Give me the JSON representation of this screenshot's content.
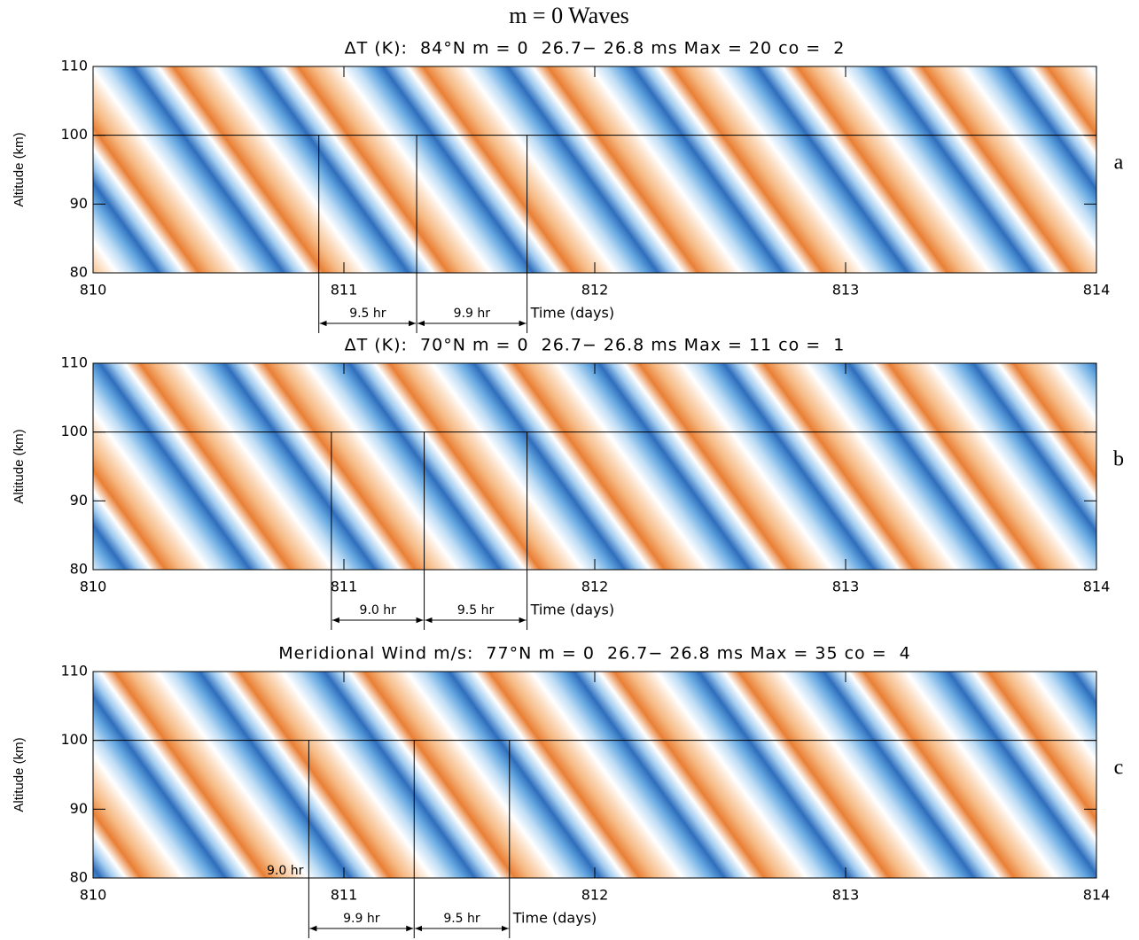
{
  "title": "m = 0 Waves",
  "chart_data": [
    {
      "type": "contour",
      "title": "ΔT (K):  84°N m = 0  26.7− 26.8 ms Max = 20 co =  2",
      "panel_label": "a",
      "xlabel": "Time (days)",
      "ylabel": "Altitude (km)",
      "xlim": [
        810,
        814
      ],
      "xticks": [
        810,
        811,
        812,
        813,
        814
      ],
      "ylim": [
        80,
        110
      ],
      "yticks": [
        80,
        90,
        100,
        110
      ],
      "reference_line": 100,
      "vertical_lines": [
        810.9,
        811.29,
        811.73
      ],
      "intervals": [
        "9.5 hr",
        "9.9 hr"
      ]
    },
    {
      "type": "contour",
      "title": "ΔT (K):  70°N m = 0  26.7− 26.8 ms Max = 11 co =  1",
      "panel_label": "b",
      "xlabel": "Time (days)",
      "ylabel": "Altitude (km)",
      "xlim": [
        810,
        814
      ],
      "xticks": [
        810,
        811,
        812,
        813,
        814
      ],
      "ylim": [
        80,
        110
      ],
      "yticks": [
        80,
        90,
        100,
        110
      ],
      "reference_line": 100,
      "vertical_lines": [
        810.95,
        811.32,
        811.73
      ],
      "intervals": [
        "9.0 hr",
        "9.5 hr"
      ]
    },
    {
      "type": "contour",
      "title": "Meridional Wind m/s:  77°N m = 0  26.7− 26.8 ms Max = 35 co =  4",
      "panel_label": "c",
      "xlabel": "Time (days)",
      "ylabel": "Altitude (km)",
      "xlim": [
        810,
        814
      ],
      "xticks": [
        810,
        811,
        812,
        813,
        814
      ],
      "ylim": [
        80,
        110
      ],
      "yticks": [
        80,
        90,
        100,
        110
      ],
      "reference_line": 100,
      "vertical_lines": [
        810.86,
        811.28,
        811.66
      ],
      "intervals": [
        "9.9 hr",
        "9.5 hr"
      ],
      "annotation": "9.0 hr"
    }
  ]
}
